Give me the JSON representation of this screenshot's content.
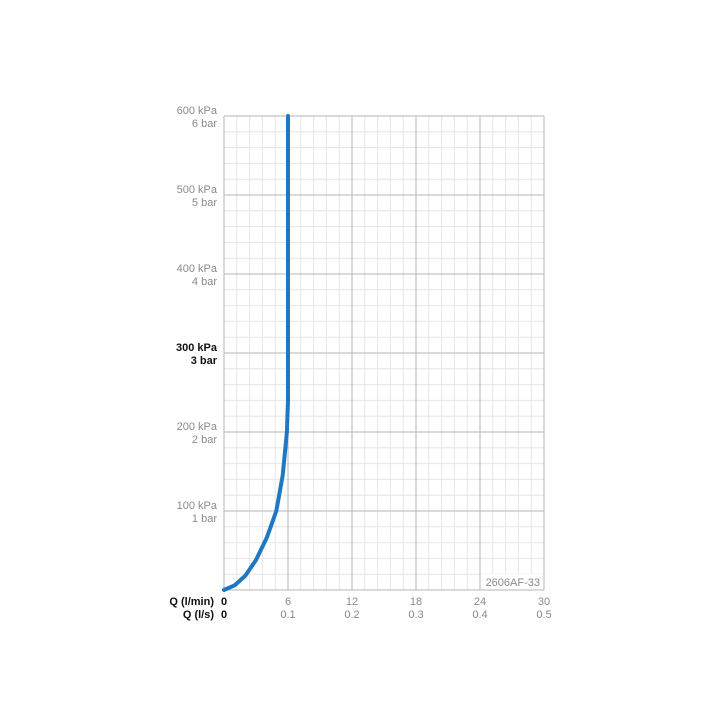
{
  "chart_data": {
    "type": "line",
    "title": "",
    "code_label": "2606AF-33",
    "x_axis": {
      "label_primary": "Q (l/min)",
      "label_secondary": "Q (l/s)",
      "range": [
        0,
        30
      ],
      "ticks": [
        0,
        6,
        12,
        18,
        24,
        30
      ],
      "tick_labels_primary": [
        "0",
        "6",
        "12",
        "18",
        "24",
        "30"
      ],
      "tick_labels_secondary": [
        "0",
        "0.1",
        "0.2",
        "0.3",
        "0.4",
        "0.5"
      ]
    },
    "y_axis": {
      "range": [
        0,
        600
      ],
      "unit": "kPa",
      "ticks": [
        100,
        200,
        300,
        400,
        500,
        600
      ],
      "tick_labels_kpa": [
        "100 kPa",
        "200 kPa",
        "300 kPa",
        "400 kPa",
        "500 kPa",
        "600 kPa"
      ],
      "tick_labels_bar": [
        "1 bar",
        "2 bar",
        "3 bar",
        "4 bar",
        "5 bar",
        "6 bar"
      ],
      "highlighted_tick": 300
    },
    "grid": true,
    "series": [
      {
        "color": "#1f78c1",
        "x": [
          0,
          1,
          2,
          3,
          4,
          4.9,
          5.5,
          5.9,
          6.0,
          6.0
        ],
        "y": [
          0,
          6,
          18,
          38,
          66,
          100,
          145,
          200,
          240,
          600
        ]
      }
    ]
  }
}
